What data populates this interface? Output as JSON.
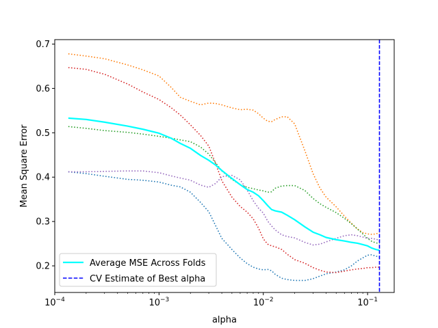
{
  "chart_data": {
    "type": "line",
    "xlabel": "alpha",
    "ylabel": "Mean Square Error",
    "xscale": "log",
    "xlim": [
      0.0001,
      0.18
    ],
    "ylim": [
      0.14,
      0.71
    ],
    "x_ticks": [
      {
        "value": 0.0001,
        "base": "10",
        "exp": "−4"
      },
      {
        "value": 0.001,
        "base": "10",
        "exp": "−3"
      },
      {
        "value": 0.01,
        "base": "10",
        "exp": "−2"
      },
      {
        "value": 0.1,
        "base": "10",
        "exp": "−1"
      }
    ],
    "y_ticks": [
      "0.2",
      "0.3",
      "0.4",
      "0.5",
      "0.6",
      "0.7"
    ],
    "grid": false,
    "legend_position": "lower-left",
    "x": [
      0.000135,
      0.0002,
      0.0003,
      0.0005,
      0.0007,
      0.001,
      0.0013,
      0.0016,
      0.002,
      0.0025,
      0.003,
      0.0035,
      0.004,
      0.005,
      0.006,
      0.007,
      0.008,
      0.009,
      0.01,
      0.011,
      0.012,
      0.013,
      0.015,
      0.017,
      0.02,
      0.025,
      0.03,
      0.035,
      0.04,
      0.05,
      0.06,
      0.07,
      0.08,
      0.09,
      0.1,
      0.11,
      0.12,
      0.13
    ],
    "series": [
      {
        "style": "dotted",
        "color": "#1f77b4",
        "values": [
          0.412,
          0.408,
          0.402,
          0.395,
          0.393,
          0.389,
          0.382,
          0.378,
          0.366,
          0.343,
          0.322,
          0.29,
          0.262,
          0.237,
          0.218,
          0.205,
          0.197,
          0.193,
          0.191,
          0.192,
          0.189,
          0.181,
          0.172,
          0.169,
          0.167,
          0.167,
          0.171,
          0.177,
          0.182,
          0.186,
          0.191,
          0.2,
          0.211,
          0.218,
          0.224,
          0.225,
          0.222,
          0.22
        ]
      },
      {
        "style": "dotted",
        "color": "#ff7f0e",
        "values": [
          0.678,
          0.673,
          0.667,
          0.653,
          0.642,
          0.628,
          0.603,
          0.58,
          0.571,
          0.563,
          0.567,
          0.566,
          0.563,
          0.556,
          0.552,
          0.553,
          0.551,
          0.543,
          0.533,
          0.526,
          0.525,
          0.53,
          0.536,
          0.536,
          0.52,
          0.46,
          0.408,
          0.375,
          0.355,
          0.333,
          0.312,
          0.296,
          0.283,
          0.275,
          0.272,
          0.271,
          0.272,
          0.275
        ]
      },
      {
        "style": "dotted",
        "color": "#2ca02c",
        "values": [
          0.514,
          0.51,
          0.505,
          0.501,
          0.497,
          0.492,
          0.488,
          0.484,
          0.48,
          0.468,
          0.452,
          0.432,
          0.414,
          0.395,
          0.383,
          0.377,
          0.374,
          0.371,
          0.369,
          0.366,
          0.367,
          0.375,
          0.38,
          0.381,
          0.381,
          0.37,
          0.352,
          0.34,
          0.332,
          0.32,
          0.307,
          0.295,
          0.283,
          0.272,
          0.262,
          0.255,
          0.252,
          0.25
        ]
      },
      {
        "style": "dotted",
        "color": "#d62728",
        "values": [
          0.647,
          0.643,
          0.632,
          0.61,
          0.592,
          0.575,
          0.557,
          0.54,
          0.518,
          0.494,
          0.47,
          0.43,
          0.392,
          0.355,
          0.334,
          0.321,
          0.306,
          0.285,
          0.261,
          0.249,
          0.245,
          0.243,
          0.237,
          0.226,
          0.214,
          0.206,
          0.196,
          0.19,
          0.186,
          0.185,
          0.188,
          0.191,
          0.193,
          0.194,
          0.196,
          0.196,
          0.197,
          0.197
        ]
      },
      {
        "style": "dotted",
        "color": "#9467bd",
        "values": [
          0.412,
          0.412,
          0.413,
          0.414,
          0.414,
          0.41,
          0.403,
          0.398,
          0.393,
          0.382,
          0.377,
          0.386,
          0.401,
          0.404,
          0.394,
          0.371,
          0.347,
          0.33,
          0.319,
          0.301,
          0.29,
          0.281,
          0.27,
          0.266,
          0.263,
          0.253,
          0.247,
          0.249,
          0.254,
          0.262,
          0.268,
          0.27,
          0.268,
          0.265,
          0.262,
          0.262,
          0.26,
          0.258
        ]
      },
      {
        "name": "Average MSE Across Folds",
        "style": "solid",
        "color": "#00ffff",
        "values": [
          0.533,
          0.53,
          0.524,
          0.515,
          0.508,
          0.499,
          0.488,
          0.476,
          0.465,
          0.449,
          0.438,
          0.427,
          0.415,
          0.397,
          0.383,
          0.372,
          0.366,
          0.358,
          0.347,
          0.336,
          0.327,
          0.324,
          0.321,
          0.314,
          0.304,
          0.288,
          0.276,
          0.27,
          0.264,
          0.259,
          0.256,
          0.253,
          0.251,
          0.248,
          0.245,
          0.24,
          0.237,
          0.235
        ]
      }
    ],
    "vline": {
      "name": "CV Estimate of Best alpha",
      "x": 0.13,
      "style": "dashed",
      "color": "#0000ff"
    }
  }
}
